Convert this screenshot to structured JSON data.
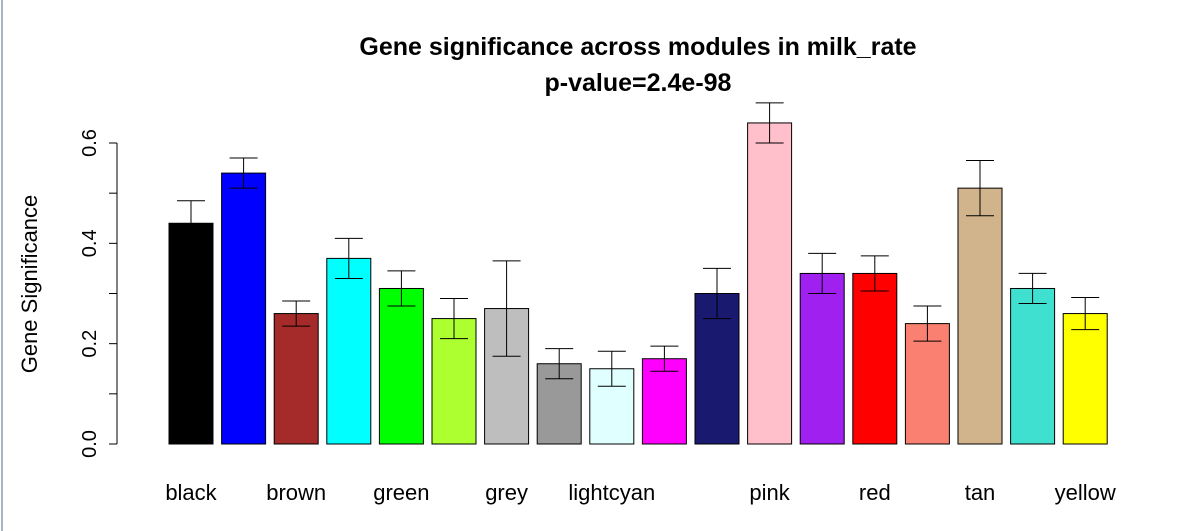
{
  "chart_data": {
    "type": "bar",
    "title": "Gene significance across modules in milk_rate",
    "subtitle": "p-value=2.4e-98",
    "xlabel": "",
    "ylabel": "Gene Significance",
    "ylim": [
      0,
      0.6
    ],
    "yticks": [
      "0.0",
      "0.2",
      "0.4",
      "0.6"
    ],
    "grid": false,
    "legend": "none",
    "categories": [
      "black",
      "blue",
      "brown",
      "cyan",
      "green",
      "greenyellow",
      "grey",
      "grey60",
      "lightcyan",
      "magenta",
      "midnightblue",
      "pink",
      "purple",
      "red",
      "salmon",
      "tan",
      "turquoise",
      "yellow"
    ],
    "visible_xtick_labels": [
      "black",
      "",
      "brown",
      "",
      "green",
      "",
      "grey",
      "",
      "lightcyan",
      "",
      "",
      "pink",
      "",
      "red",
      "",
      "tan",
      "",
      "yellow"
    ],
    "values": [
      0.44,
      0.54,
      0.26,
      0.37,
      0.31,
      0.25,
      0.27,
      0.16,
      0.15,
      0.17,
      0.3,
      0.64,
      0.34,
      0.34,
      0.24,
      0.51,
      0.31,
      0.26
    ],
    "errors": [
      0.045,
      0.03,
      0.025,
      0.04,
      0.035,
      0.04,
      0.095,
      0.03,
      0.035,
      0.025,
      0.05,
      0.04,
      0.04,
      0.035,
      0.035,
      0.055,
      0.03,
      0.032
    ],
    "colors": [
      "#000000",
      "#0000ff",
      "#a52a2a",
      "#00ffff",
      "#00ff00",
      "#adff2f",
      "#bebebe",
      "#999999",
      "#e0ffff",
      "#ff00ff",
      "#191970",
      "#ffc0cb",
      "#a020f0",
      "#ff0000",
      "#fa8072",
      "#d2b48c",
      "#40e0d0",
      "#ffff00"
    ]
  }
}
